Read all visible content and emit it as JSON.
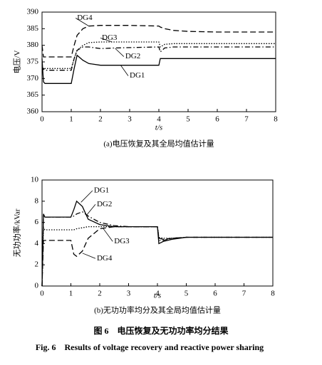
{
  "chart_data": [
    {
      "type": "line",
      "caption": "(a)电压恢复及其全局均值估计量",
      "x_label": "t/s",
      "y_label": "电压/V",
      "x": [
        0,
        0.05,
        0.1,
        1,
        1.1,
        1.2,
        1.4,
        1.6,
        2,
        2.5,
        3,
        4,
        4.05,
        4.2,
        4.5,
        5,
        6,
        8
      ],
      "series": [
        {
          "name": "DG1",
          "color": "#000000",
          "dash": "solid",
          "values": [
            376,
            369,
            368.5,
            368.5,
            373,
            377,
            375.5,
            374.5,
            374,
            374,
            374,
            374,
            376,
            376,
            376,
            376,
            376,
            376
          ]
        },
        {
          "name": "DG2",
          "color": "#000000",
          "dash": "dashdot",
          "values": [
            372,
            373,
            372.5,
            372.5,
            376,
            378.5,
            379.5,
            379.5,
            379,
            379.2,
            379.3,
            379.5,
            378,
            379.2,
            379.5,
            379.5,
            379.5,
            379.5
          ]
        },
        {
          "name": "DG3",
          "color": "#000000",
          "dash": "dotted",
          "values": [
            373,
            373,
            373,
            373,
            376,
            378.5,
            380,
            380.8,
            381,
            381,
            381,
            381,
            379.5,
            380.3,
            380.5,
            380.5,
            380.5,
            380.5
          ]
        },
        {
          "name": "DG4",
          "color": "#000000",
          "dash": "dashed",
          "values": [
            380,
            376.5,
            376.5,
            376.5,
            380,
            383,
            385,
            385.8,
            386,
            386,
            386,
            385.8,
            385.5,
            385,
            384.5,
            384.2,
            384,
            384
          ]
        }
      ],
      "xlim": [
        0,
        8
      ],
      "xticks": [
        0,
        1,
        2,
        3,
        4,
        5,
        6,
        7,
        8
      ],
      "ylim": [
        360,
        390
      ],
      "yticks": [
        360,
        365,
        370,
        375,
        380,
        385,
        390
      ]
    },
    {
      "type": "line",
      "caption": "(b)无功功率均分及其全局均值估计量",
      "x_label": "t/s",
      "y_label": "无功功率/kVar",
      "x": [
        0,
        0.05,
        0.1,
        1,
        1.1,
        1.2,
        1.4,
        1.6,
        2,
        2.5,
        3,
        4,
        4.05,
        4.2,
        4.5,
        5,
        6,
        8
      ],
      "series": [
        {
          "name": "DG1",
          "color": "#000000",
          "dash": "solid",
          "values": [
            0,
            6.8,
            6.5,
            6.5,
            7.2,
            8,
            7.5,
            6.3,
            5.8,
            5.6,
            5.6,
            5.6,
            4.0,
            4.2,
            4.4,
            4.6,
            4.6,
            4.6
          ]
        },
        {
          "name": "DG2",
          "color": "#000000",
          "dash": "dashdot",
          "values": [
            0,
            6.6,
            6.5,
            6.5,
            6.6,
            6.8,
            7.0,
            6.6,
            6.0,
            5.7,
            5.6,
            5.6,
            4.3,
            4.3,
            4.5,
            4.6,
            4.6,
            4.6
          ]
        },
        {
          "name": "DG3",
          "color": "#000000",
          "dash": "dotted",
          "values": [
            0,
            5.5,
            5.3,
            5.3,
            5.3,
            5.4,
            5.5,
            5.6,
            5.6,
            5.6,
            5.6,
            5.6,
            4.6,
            4.5,
            4.5,
            4.6,
            4.6,
            4.6
          ]
        },
        {
          "name": "DG4",
          "color": "#000000",
          "dash": "dashed",
          "values": [
            0,
            4.3,
            4.3,
            4.3,
            3.0,
            2.8,
            3.3,
            4.5,
            5.4,
            5.6,
            5.6,
            5.6,
            4.5,
            4.4,
            4.5,
            4.6,
            4.6,
            4.6
          ]
        }
      ],
      "xlim": [
        0,
        8
      ],
      "xticks": [
        0,
        1,
        2,
        3,
        4,
        5,
        6,
        7,
        8
      ],
      "ylim": [
        0,
        10
      ],
      "yticks": [
        0,
        2,
        4,
        6,
        8,
        10
      ]
    }
  ],
  "figure_caption_cn": "图 6　电压恢复及无功功率均分结果",
  "figure_caption_en": "Fig. 6　Results of voltage recovery and reactive power sharing"
}
